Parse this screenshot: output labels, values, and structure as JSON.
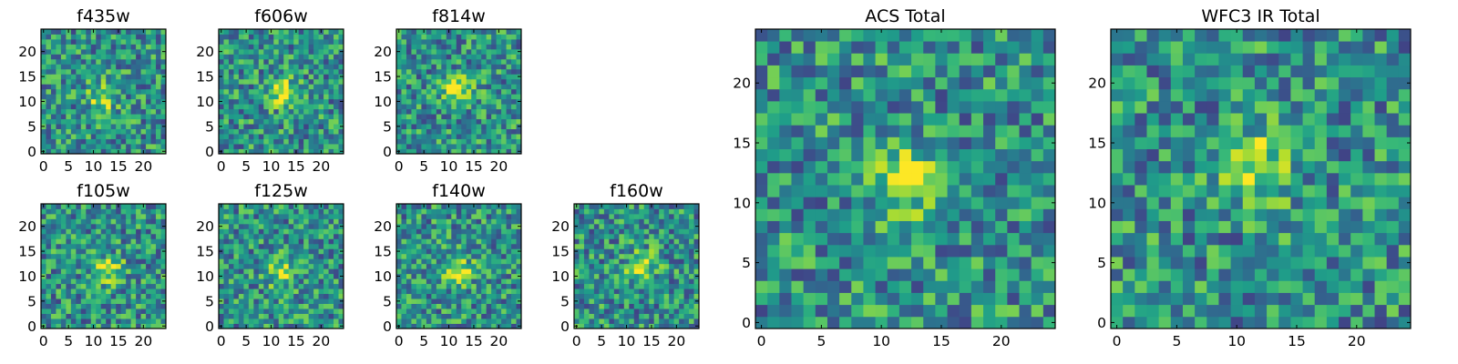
{
  "chart_data": [
    {
      "type": "heatmap",
      "title": "f435w",
      "grid": [
        25,
        25
      ],
      "xticks": [
        0,
        5,
        10,
        15,
        20
      ],
      "yticks": [
        0,
        5,
        10,
        15,
        20
      ],
      "xlim": [
        0,
        25
      ],
      "ylim": [
        0,
        25
      ],
      "peak": [
        12,
        11
      ],
      "colormap": "viridis"
    },
    {
      "type": "heatmap",
      "title": "f606w",
      "grid": [
        25,
        25
      ],
      "xticks": [
        0,
        5,
        10,
        15,
        20
      ],
      "yticks": [
        0,
        5,
        10,
        15,
        20
      ],
      "xlim": [
        0,
        25
      ],
      "ylim": [
        0,
        25
      ],
      "peak": [
        12,
        12
      ],
      "colormap": "viridis"
    },
    {
      "type": "heatmap",
      "title": "f814w",
      "grid": [
        25,
        25
      ],
      "xticks": [
        0,
        5,
        10,
        15,
        20
      ],
      "yticks": [
        0,
        5,
        10,
        15,
        20
      ],
      "xlim": [
        0,
        25
      ],
      "ylim": [
        0,
        25
      ],
      "peak": [
        12,
        12
      ],
      "colormap": "viridis"
    },
    {
      "type": "heatmap",
      "title": "f105w",
      "grid": [
        25,
        25
      ],
      "xticks": [
        0,
        5,
        10,
        15,
        20
      ],
      "yticks": [
        0,
        5,
        10,
        15,
        20
      ],
      "xlim": [
        0,
        25
      ],
      "ylim": [
        0,
        25
      ],
      "peak": [
        13,
        11
      ],
      "colormap": "viridis"
    },
    {
      "type": "heatmap",
      "title": "f125w",
      "grid": [
        25,
        25
      ],
      "xticks": [
        0,
        5,
        10,
        15,
        20
      ],
      "yticks": [
        0,
        5,
        10,
        15,
        20
      ],
      "xlim": [
        0,
        25
      ],
      "ylim": [
        0,
        25
      ],
      "peak": [
        12,
        11
      ],
      "colormap": "viridis"
    },
    {
      "type": "heatmap",
      "title": "f140w",
      "grid": [
        25,
        25
      ],
      "xticks": [
        0,
        5,
        10,
        15,
        20
      ],
      "yticks": [
        0,
        5,
        10,
        15,
        20
      ],
      "xlim": [
        0,
        25
      ],
      "ylim": [
        0,
        25
      ],
      "peak": [
        12,
        11
      ],
      "colormap": "viridis"
    },
    {
      "type": "heatmap",
      "title": "f160w",
      "grid": [
        25,
        25
      ],
      "xticks": [
        0,
        5,
        10,
        15,
        20
      ],
      "yticks": [
        0,
        5,
        10,
        15,
        20
      ],
      "xlim": [
        0,
        25
      ],
      "ylim": [
        0,
        25
      ],
      "peak": [
        13,
        12
      ],
      "colormap": "viridis"
    },
    {
      "type": "heatmap",
      "title": "ACS Total",
      "grid": [
        25,
        25
      ],
      "xticks": [
        0,
        5,
        10,
        15,
        20
      ],
      "yticks": [
        0,
        5,
        10,
        15,
        20
      ],
      "xlim": [
        0,
        25
      ],
      "ylim": [
        0,
        25
      ],
      "peak": [
        12,
        12
      ],
      "colormap": "viridis"
    },
    {
      "type": "heatmap",
      "title": "WFC3 IR Total",
      "grid": [
        25,
        25
      ],
      "xticks": [
        0,
        5,
        10,
        15,
        20
      ],
      "yticks": [
        0,
        5,
        10,
        15,
        20
      ],
      "xlim": [
        0,
        25
      ],
      "ylim": [
        0,
        25
      ],
      "peak": [
        12,
        13
      ],
      "colormap": "viridis"
    }
  ]
}
